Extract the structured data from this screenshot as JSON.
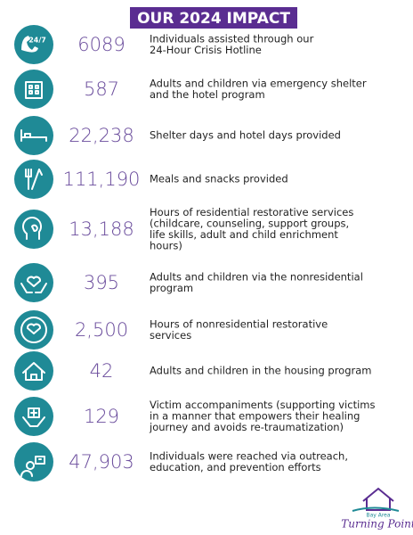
{
  "header": {
    "title": "OUR 2024 IMPACT"
  },
  "items": [
    {
      "icon_text": "24/7",
      "stat": "6089",
      "description": [
        "Individuals assisted through our",
        "24-Hour Crisis Hotline"
      ]
    },
    {
      "stat": "587",
      "description": [
        "Adults and children via emergency shelter",
        "and the hotel program"
      ]
    },
    {
      "stat": "22,238",
      "description": [
        "Shelter days and hotel days provided"
      ]
    },
    {
      "stat": "111,190",
      "description": [
        "Meals and snacks provided"
      ]
    },
    {
      "stat": "13,188",
      "description": [
        "Hours of residential restorative services",
        "(childcare, counseling, support groups,",
        "life skills, adult and child enrichment",
        "hours)"
      ]
    },
    {
      "stat": "395",
      "description": [
        "Adults and children via the nonresidential",
        "program"
      ]
    },
    {
      "stat": "2,500",
      "description": [
        "Hours of nonresidential restorative",
        "services"
      ]
    },
    {
      "stat": "42",
      "description": [
        "Adults and children in the housing program"
      ]
    },
    {
      "stat": "129",
      "description": [
        "Victim accompaniments (supporting victims",
        "in a manner that empowers their healing",
        "journey and avoids re-traumatization)"
      ]
    },
    {
      "stat": "47,903",
      "description": [
        "Individuals were reached via outreach,",
        "education, and prevention efforts"
      ]
    }
  ],
  "logo": {
    "line1": "Bay Area",
    "line2": "Turning Point"
  }
}
